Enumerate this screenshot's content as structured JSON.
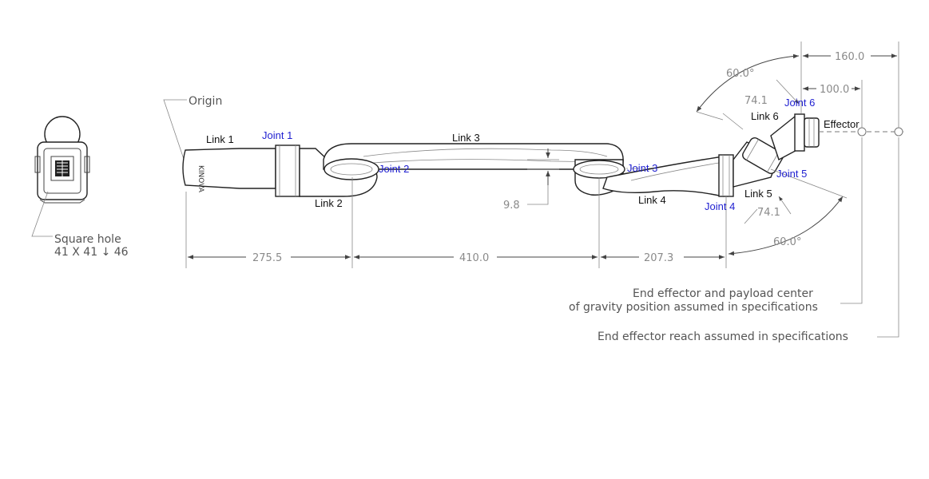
{
  "notes": {
    "origin": "Origin",
    "square_hole_title": "Square hole",
    "square_hole_size": "41 X 41 ↓ 46",
    "payload_line1": "End effector and payload center",
    "payload_line2": "of gravity position assumed in specifications",
    "reach": "End effector reach assumed in specifications"
  },
  "links": {
    "link1": "Link 1",
    "link2": "Link 2",
    "link3": "Link 3",
    "link4": "Link 4",
    "link5": "Link 5",
    "link6": "Link 6",
    "effector": "Effector"
  },
  "joints": {
    "joint1": "Joint 1",
    "joint2": "Joint 2",
    "joint3": "Joint 3",
    "joint4": "Joint 4",
    "joint5": "Joint 5",
    "joint6": "Joint 6"
  },
  "dimensions": {
    "d275": "275.5",
    "d410": "410.0",
    "d207": "207.3",
    "d9_8": "9.8",
    "d160": "160.0",
    "d100": "100.0",
    "d74_top": "74.1",
    "d74_bottom": "74.1",
    "ang_top": "60.0°",
    "ang_bottom": "60.0°"
  },
  "colors": {
    "joint_label": "#1f1fd0",
    "link_label": "#111111",
    "dimension": "#8a8a8a"
  }
}
